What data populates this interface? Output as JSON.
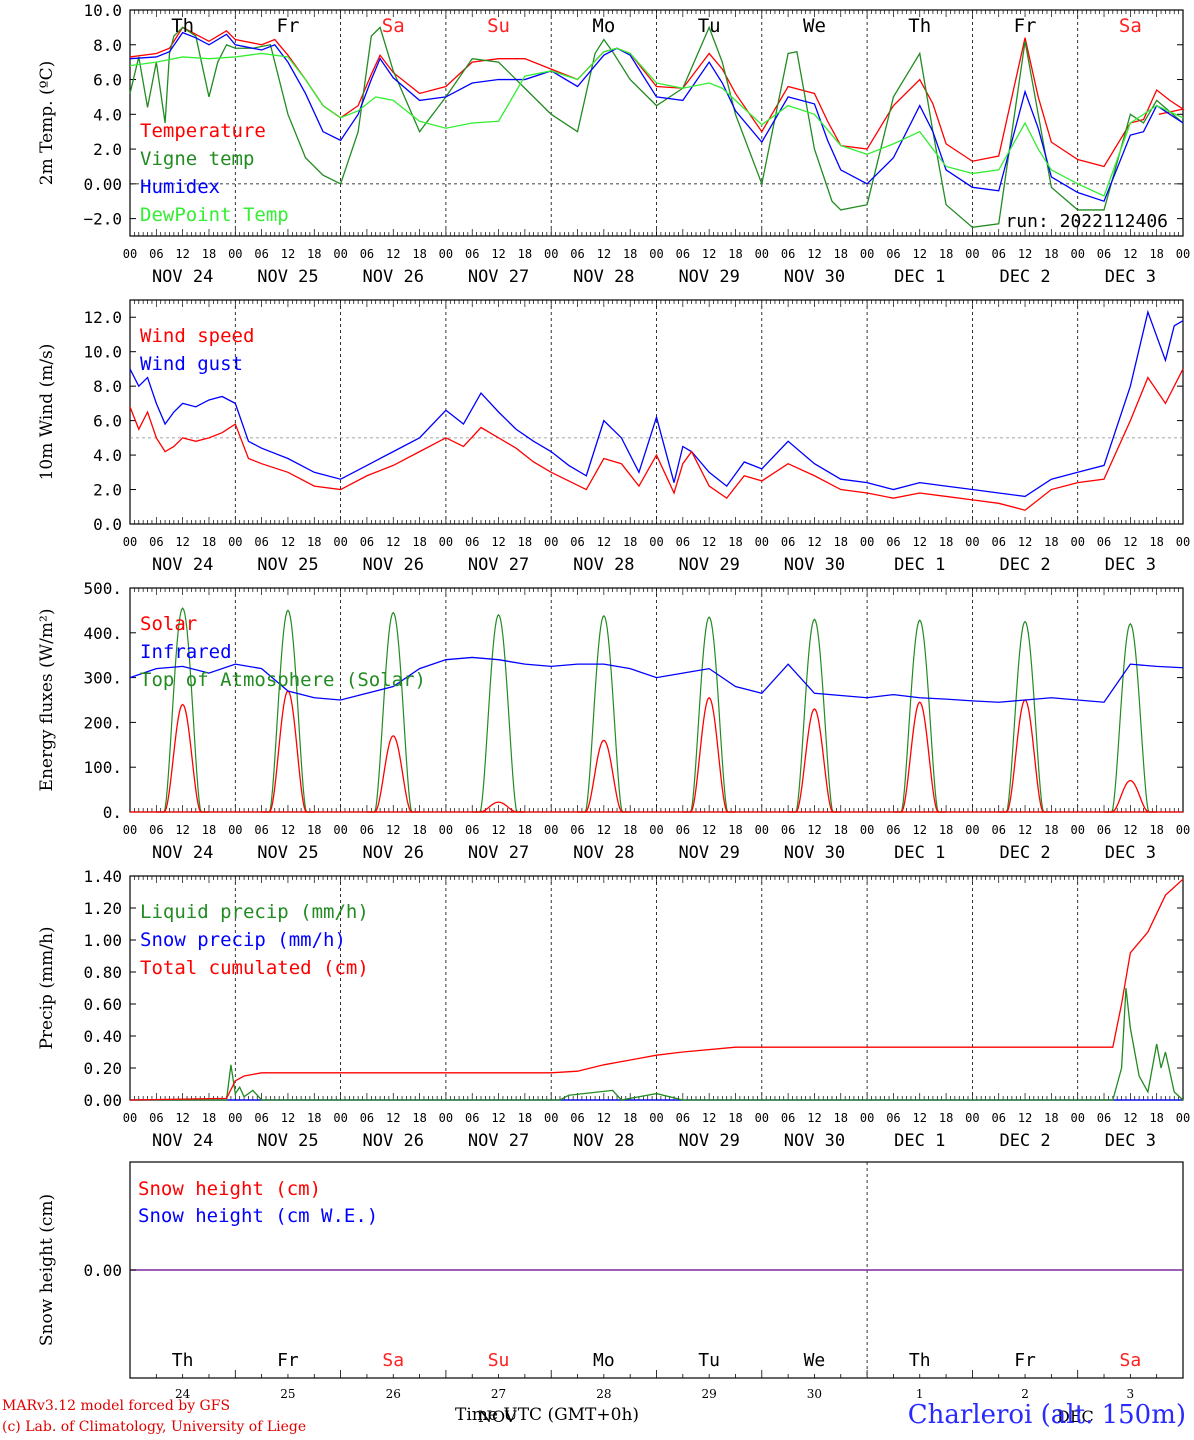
{
  "chart_data": [
    {
      "type": "line",
      "ylabel": "2m Temp. (ºC)",
      "ylim": [
        -3.0,
        10.0
      ],
      "yticks": [
        "10.0",
        "8.0",
        "6.0",
        "4.0",
        "2.0",
        "0.00",
        "−2.0"
      ],
      "ytick_values": [
        10,
        8,
        6,
        4,
        2,
        0,
        -2
      ],
      "ref_line": 0,
      "day_labels": [
        "Th",
        "Fr",
        "Sa",
        "Su",
        "Mo",
        "Tu",
        "We",
        "Th",
        "Fr",
        "Sa"
      ],
      "run_label": "run: 2022112406",
      "series": [
        {
          "name": "Temperature",
          "color": "#ff0000",
          "x": [
            0,
            6,
            9,
            12,
            15,
            18,
            22,
            24,
            30,
            33,
            36,
            40,
            44,
            48,
            52,
            55,
            57,
            60,
            66,
            72,
            78,
            84,
            90,
            96,
            102,
            108,
            111,
            114,
            120,
            126,
            132,
            135,
            138,
            144,
            150,
            156,
            159,
            162,
            168,
            174,
            180,
            183,
            186,
            192,
            198,
            204,
            207,
            210,
            216,
            222,
            228,
            231,
            234,
            237,
            240,
            234.5
          ],
          "y": [
            7.3,
            7.5,
            7.8,
            9.0,
            8.6,
            8.2,
            8.8,
            8.3,
            8.0,
            8.3,
            7.4,
            6.0,
            4.5,
            3.8,
            4.5,
            6.3,
            7.4,
            6.4,
            5.2,
            5.6,
            7.0,
            7.2,
            7.2,
            6.6,
            6.0,
            7.6,
            7.8,
            7.5,
            5.6,
            5.5,
            7.5,
            6.6,
            5.2,
            3.0,
            5.6,
            5.2,
            3.6,
            2.2,
            2.0,
            4.5,
            6.0,
            4.6,
            2.3,
            1.3,
            1.6,
            8.4,
            5.0,
            2.4,
            1.4,
            1.0,
            3.5,
            3.7,
            5.4,
            4.8,
            4.3,
            4.0
          ]
        },
        {
          "name": "Vigne temp",
          "color": "#228b22",
          "x": [
            0,
            2,
            4,
            6,
            8,
            9,
            10,
            12,
            15,
            18,
            20,
            22,
            24,
            28,
            32,
            36,
            40,
            44,
            48,
            52,
            55,
            57,
            60,
            66,
            72,
            78,
            84,
            90,
            96,
            102,
            106,
            108,
            110,
            114,
            120,
            126,
            132,
            135,
            138,
            144,
            150,
            152,
            156,
            160,
            162,
            168,
            174,
            180,
            183,
            186,
            192,
            198,
            204,
            207,
            210,
            216,
            222,
            228,
            231,
            234,
            240
          ],
          "y": [
            5.2,
            7.3,
            4.4,
            7.0,
            3.5,
            7.5,
            8.5,
            9.0,
            8.5,
            5.0,
            7.0,
            8.0,
            7.8,
            7.8,
            8.0,
            4.0,
            1.5,
            0.5,
            0.0,
            3.0,
            8.5,
            9.0,
            6.5,
            3.0,
            5.0,
            7.2,
            7.0,
            5.5,
            4.0,
            3.0,
            7.5,
            8.3,
            7.6,
            6.0,
            4.5,
            5.5,
            9.0,
            7.0,
            4.0,
            0.0,
            7.5,
            7.6,
            2.0,
            -1.0,
            -1.5,
            -1.2,
            5.0,
            7.5,
            3.0,
            -1.2,
            -2.5,
            -2.3,
            8.2,
            4.0,
            -0.2,
            -1.5,
            -1.5,
            4.0,
            3.5,
            4.8,
            3.5
          ]
        },
        {
          "name": "Humidex",
          "color": "#0000ff",
          "x": [
            0,
            6,
            9,
            12,
            15,
            18,
            22,
            24,
            30,
            33,
            36,
            40,
            44,
            48,
            52,
            55,
            57,
            60,
            66,
            72,
            78,
            84,
            90,
            96,
            102,
            108,
            111,
            114,
            120,
            126,
            132,
            135,
            138,
            144,
            150,
            156,
            159,
            162,
            168,
            174,
            180,
            183,
            186,
            192,
            198,
            204,
            207,
            210,
            216,
            222,
            228,
            231,
            234,
            237,
            240
          ],
          "y": [
            7.2,
            7.3,
            7.6,
            8.7,
            8.4,
            8.0,
            8.6,
            8.0,
            7.7,
            8.0,
            7.0,
            5.2,
            3.0,
            2.5,
            4.0,
            6.0,
            7.2,
            6.1,
            4.8,
            5.0,
            5.8,
            6.0,
            6.0,
            6.5,
            5.6,
            7.4,
            7.8,
            7.4,
            5.0,
            4.8,
            7.0,
            5.8,
            4.2,
            2.4,
            5.0,
            4.6,
            2.5,
            0.8,
            0.0,
            1.5,
            4.5,
            3.0,
            0.8,
            -0.2,
            -0.4,
            5.3,
            3.2,
            0.4,
            -0.5,
            -1.0,
            2.8,
            3.0,
            4.5,
            4.0,
            3.5
          ]
        },
        {
          "name": "DewPoint Temp",
          "color": "#33ee33",
          "x": [
            0,
            6,
            12,
            18,
            24,
            30,
            36,
            40,
            44,
            48,
            52,
            56,
            60,
            66,
            72,
            78,
            84,
            90,
            96,
            102,
            108,
            111,
            114,
            120,
            126,
            132,
            135,
            138,
            144,
            150,
            156,
            162,
            168,
            174,
            180,
            183,
            186,
            192,
            198,
            204,
            207,
            210,
            216,
            222,
            228,
            234,
            240
          ],
          "y": [
            6.8,
            7.0,
            7.3,
            7.2,
            7.3,
            7.5,
            7.3,
            6.0,
            4.5,
            3.8,
            4.2,
            5.0,
            4.8,
            3.6,
            3.2,
            3.5,
            3.6,
            6.2,
            6.5,
            6.0,
            7.6,
            7.8,
            7.5,
            5.8,
            5.5,
            5.8,
            5.5,
            4.8,
            3.4,
            4.5,
            4.0,
            2.2,
            1.7,
            2.3,
            3.0,
            2.0,
            1.0,
            0.6,
            0.8,
            3.5,
            2.0,
            0.8,
            0.0,
            -0.7,
            3.5,
            4.5,
            3.8
          ]
        }
      ]
    },
    {
      "type": "line",
      "ylabel": "10m Wind (m/s)",
      "ylim": [
        0,
        13.0
      ],
      "yticks": [
        "12.0",
        "10.0",
        "8.0",
        "6.0",
        "4.0",
        "2.0",
        "0.0"
      ],
      "ytick_values": [
        12,
        10,
        8,
        6,
        4,
        2,
        0
      ],
      "ref_line": 5,
      "series": [
        {
          "name": "Wind speed",
          "color": "#ff0000",
          "x": [
            0,
            2,
            4,
            6,
            8,
            10,
            12,
            15,
            18,
            21,
            24,
            27,
            30,
            36,
            42,
            48,
            54,
            60,
            66,
            72,
            76,
            80,
            84,
            88,
            92,
            96,
            100,
            104,
            108,
            112,
            116,
            120,
            124,
            126,
            128,
            132,
            136,
            140,
            144,
            150,
            156,
            162,
            168,
            174,
            180,
            186,
            192,
            198,
            204,
            210,
            216,
            222,
            228,
            232,
            236,
            240
          ],
          "y": [
            6.8,
            5.5,
            6.5,
            5.0,
            4.2,
            4.5,
            5.0,
            4.8,
            5.0,
            5.3,
            5.8,
            3.8,
            3.5,
            3.0,
            2.2,
            2.0,
            2.8,
            3.4,
            4.2,
            5.0,
            4.5,
            5.6,
            5.0,
            4.4,
            3.6,
            3.0,
            2.5,
            2.0,
            3.8,
            3.5,
            2.2,
            4.0,
            1.8,
            3.5,
            4.2,
            2.2,
            1.5,
            2.8,
            2.5,
            3.5,
            2.8,
            2.0,
            1.8,
            1.5,
            1.8,
            1.6,
            1.4,
            1.2,
            0.8,
            2.0,
            2.4,
            2.6,
            6.0,
            8.5,
            7.0,
            9.0
          ]
        },
        {
          "name": "Wind gust",
          "color": "#0000ff",
          "x": [
            0,
            2,
            4,
            6,
            8,
            10,
            12,
            15,
            18,
            21,
            24,
            27,
            30,
            36,
            42,
            48,
            54,
            60,
            66,
            72,
            76,
            80,
            84,
            88,
            92,
            96,
            100,
            104,
            108,
            112,
            116,
            120,
            124,
            126,
            128,
            132,
            136,
            140,
            144,
            150,
            156,
            162,
            168,
            174,
            180,
            186,
            192,
            198,
            204,
            210,
            216,
            222,
            228,
            232,
            236,
            238,
            240
          ],
          "y": [
            9.0,
            8.0,
            8.5,
            7.0,
            5.8,
            6.5,
            7.0,
            6.8,
            7.2,
            7.4,
            7.0,
            4.8,
            4.4,
            3.8,
            3.0,
            2.6,
            3.4,
            4.2,
            5.0,
            6.6,
            5.8,
            7.6,
            6.5,
            5.5,
            4.8,
            4.2,
            3.4,
            2.8,
            6.0,
            5.0,
            3.0,
            6.2,
            2.4,
            4.5,
            4.2,
            3.0,
            2.2,
            3.6,
            3.2,
            4.8,
            3.5,
            2.6,
            2.4,
            2.0,
            2.4,
            2.2,
            2.0,
            1.8,
            1.6,
            2.6,
            3.0,
            3.4,
            8.0,
            12.3,
            9.5,
            11.5,
            11.8
          ]
        }
      ]
    },
    {
      "type": "line",
      "ylabel": "Energy fluxes (W/m²)",
      "ylim": [
        0,
        500
      ],
      "yticks": [
        "500.",
        "400.",
        "300.",
        "200.",
        "100.",
        "0."
      ],
      "ytick_values": [
        500,
        400,
        300,
        200,
        100,
        0
      ],
      "solar_peaks": [
        240,
        270,
        170,
        22,
        160,
        255,
        230,
        245,
        250,
        70
      ],
      "toa_peaks": [
        455,
        450,
        445,
        440,
        438,
        435,
        430,
        428,
        425,
        420
      ],
      "series": [
        {
          "name": "Solar",
          "color": "#ff0000"
        },
        {
          "name": "Infrared",
          "color": "#0000ff",
          "x": [
            0,
            6,
            12,
            18,
            24,
            30,
            36,
            42,
            48,
            54,
            60,
            66,
            72,
            78,
            84,
            90,
            96,
            102,
            108,
            114,
            120,
            126,
            132,
            138,
            144,
            150,
            156,
            162,
            168,
            174,
            180,
            186,
            192,
            198,
            204,
            210,
            216,
            222,
            228,
            234,
            240
          ],
          "y": [
            300,
            320,
            325,
            310,
            330,
            320,
            270,
            255,
            250,
            265,
            280,
            320,
            340,
            345,
            340,
            330,
            325,
            330,
            330,
            320,
            300,
            310,
            320,
            280,
            265,
            330,
            265,
            260,
            255,
            262,
            255,
            252,
            248,
            245,
            250,
            255,
            250,
            245,
            330,
            325,
            322
          ]
        },
        {
          "name": "Top of Atmosphere (Solar)",
          "color": "#228b22"
        }
      ]
    },
    {
      "type": "line",
      "ylabel": "Precip (mm/h)",
      "ylim": [
        0,
        1.4
      ],
      "yticks": [
        "1.40",
        "1.20",
        "1.00",
        "0.80",
        "0.60",
        "0.40",
        "0.20",
        "0.00"
      ],
      "ytick_values": [
        1.4,
        1.2,
        1.0,
        0.8,
        0.6,
        0.4,
        0.2,
        0
      ],
      "series": [
        {
          "name": "Liquid precip (mm/h)",
          "color": "#228b22",
          "x": [
            0,
            22,
            23,
            24,
            25,
            26,
            28,
            30,
            32,
            98,
            100,
            110,
            112,
            120,
            126,
            224,
            226,
            227,
            228,
            229,
            230,
            232,
            234,
            235,
            236,
            238,
            240
          ],
          "y": [
            0,
            0,
            0.22,
            0.04,
            0.08,
            0.02,
            0.06,
            0.0,
            0,
            0,
            0.03,
            0.06,
            0.0,
            0.04,
            0,
            0,
            0.2,
            0.7,
            0.45,
            0.3,
            0.15,
            0.05,
            0.35,
            0.2,
            0.3,
            0.05,
            0
          ]
        },
        {
          "name": "Snow precip (mm/h)",
          "color": "#0000ff",
          "x": [
            0,
            240
          ],
          "y": [
            0,
            0
          ]
        },
        {
          "name": "Total cumulated (cm)",
          "color": "#ff0000",
          "x": [
            0,
            22,
            24,
            26,
            30,
            36,
            96,
            102,
            108,
            114,
            120,
            126,
            138,
            144,
            150,
            200,
            216,
            224,
            226,
            228,
            232,
            236,
            240
          ],
          "y": [
            0,
            0.01,
            0.12,
            0.15,
            0.17,
            0.17,
            0.17,
            0.18,
            0.22,
            0.25,
            0.28,
            0.3,
            0.33,
            0.33,
            0.33,
            0.33,
            0.33,
            0.33,
            0.6,
            0.92,
            1.05,
            1.28,
            1.38
          ]
        }
      ]
    },
    {
      "type": "line",
      "ylabel": "Snow height (cm)",
      "yticks": [
        "0.00"
      ],
      "ytick_values": [
        0
      ],
      "series": [
        {
          "name": "Snow height (cm)",
          "color": "#ff0000",
          "x": [
            0,
            240
          ],
          "y": [
            0,
            0
          ]
        },
        {
          "name": "Snow height (cm W.E.)",
          "color": "#0000ff",
          "x": [
            0,
            240
          ],
          "y": [
            0,
            0
          ]
        }
      ],
      "day_labels": [
        "Th",
        "Fr",
        "Sa",
        "Su",
        "Mo",
        "Tu",
        "We",
        "Th",
        "Fr",
        "Sa"
      ],
      "day_numbers": [
        "24",
        "25",
        "26",
        "27",
        "28",
        "29",
        "30",
        "1",
        "2",
        "3"
      ]
    }
  ],
  "x_axis": {
    "hour_ticks": [
      "00",
      "06",
      "12",
      "18"
    ],
    "end_tick": "00",
    "dates": [
      "NOV 24",
      "NOV 25",
      "NOV 26",
      "NOV 27",
      "NOV 28",
      "NOV 29",
      "NOV 30",
      "DEC  1",
      "DEC  2",
      "DEC  3"
    ],
    "weekend_indices": [
      2,
      3,
      9
    ],
    "weekend_color": "#ff2020",
    "weekday_color": "#000000"
  },
  "footer": {
    "credit_line1": "MARv3.12 model forced by GFS",
    "credit_line2": "(c) Lab. of Climatology, University of Liege",
    "time_axis_label": "Time UTC (GMT+0h)",
    "overlay_month": "NOV",
    "overlay_month2": "DEC",
    "station": "Charleroi (alt. 150m)"
  }
}
